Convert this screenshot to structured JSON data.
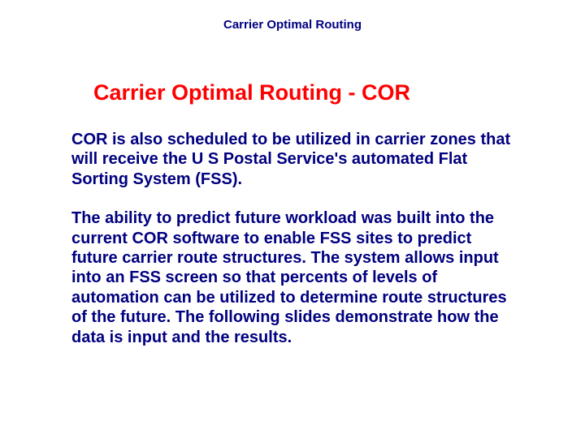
{
  "header": {
    "text": "Carrier Optimal Routing"
  },
  "title": {
    "text": "Carrier Optimal Routing - COR"
  },
  "paragraphs": {
    "p1": "COR is also scheduled to be utilized in carrier zones that will receive the U S Postal Service's automated Flat Sorting System (FSS).",
    "p2": "The ability to predict future workload was built into the current COR software to enable FSS sites to predict future carrier route structures.  The system allows input into an FSS screen so that percents of levels of automation can be utilized to determine route structures of the future.  The following slides demonstrate how the data is input and the results."
  },
  "colors": {
    "header_color": "#000080",
    "title_color": "#ff0000",
    "body_color": "#000080",
    "background": "#ffffff"
  },
  "typography": {
    "header_fontsize": 15,
    "title_fontsize": 27,
    "body_fontsize": 20,
    "font_family": "Arial"
  }
}
